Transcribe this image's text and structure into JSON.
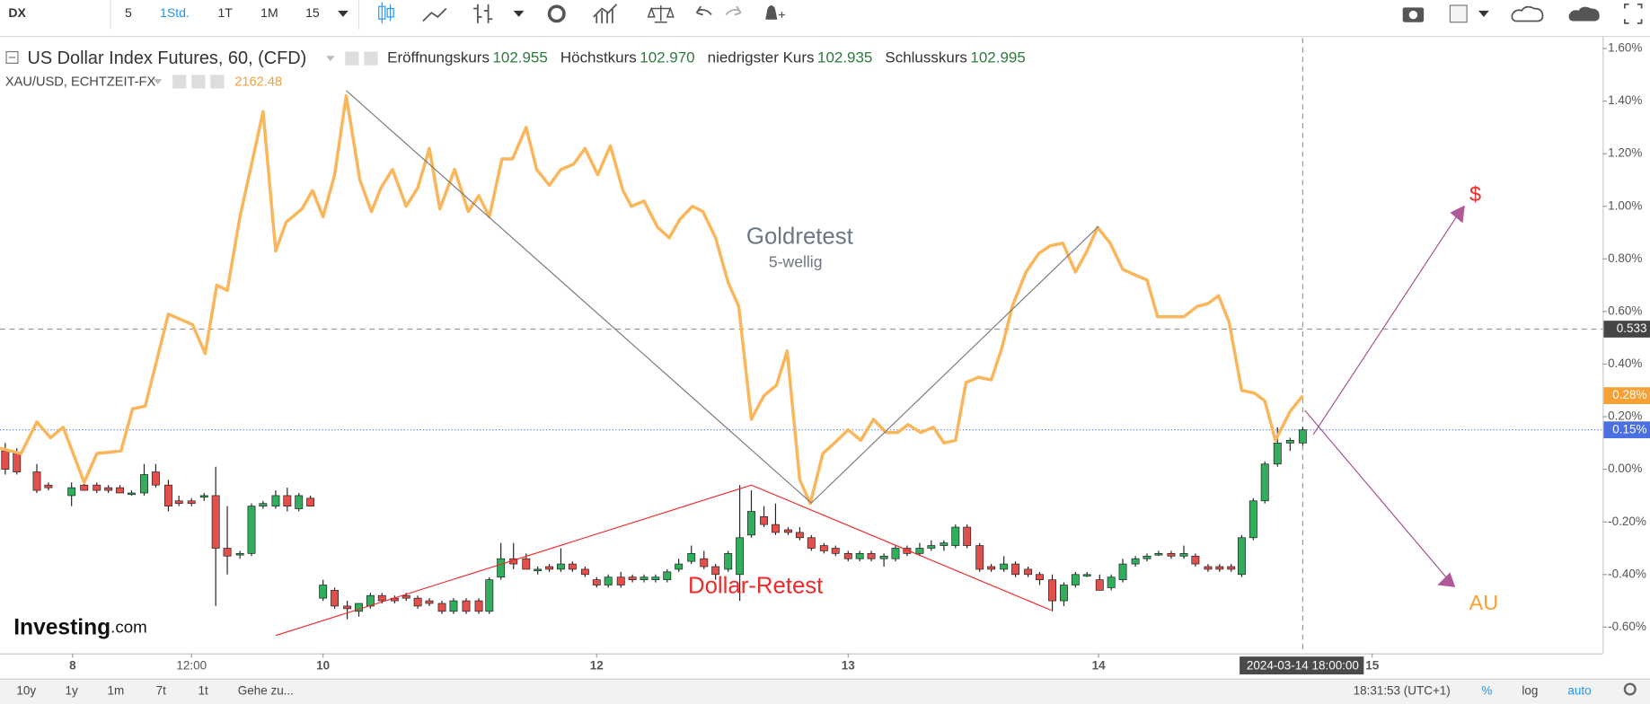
{
  "toolbar": {
    "symbol": "DX",
    "intervals": [
      "5",
      "1Std.",
      "1T",
      "1M",
      "15"
    ]
  },
  "legend": {
    "main": "US Dollar Index Futures, 60, (CFD)",
    "fields": [
      {
        "label": "Eröffnungskurs",
        "value": "102.955"
      },
      {
        "label": "Höchstkurs",
        "value": "102.970"
      },
      {
        "label": "niedrigster Kurs",
        "value": "102.935"
      },
      {
        "label": "Schlusskurs",
        "value": "102.995"
      }
    ],
    "overlay_value": "2162.48"
  },
  "annotations": [
    "Goldretest",
    "5-wellig",
    "Dollar-Retest",
    "$",
    "AU"
  ],
  "watermark": {
    "brand": "Investing",
    "suffix": ".com"
  },
  "bottom_bar": {
    "ranges": [
      "10y",
      "1y",
      "1m",
      "7t",
      "1t"
    ],
    "goto": "Gehe zu...",
    "clock": "18:31:53 (UTC+1)",
    "options": [
      "%",
      "log",
      "auto"
    ]
  },
  "chart_data": {
    "type": "candlestick",
    "name": "US Dollar Index Futures, 60, (CFD)",
    "up_color": "#2fae5c",
    "down_color": "#e3504c",
    "xlim": [
      0,
      152.3
    ],
    "xticks": [
      {
        "value": 6.9,
        "label": "8"
      },
      {
        "value": 18.2,
        "label": "12:00"
      },
      {
        "value": 30.7,
        "label": "10"
      },
      {
        "value": 56.7,
        "label": "12"
      },
      {
        "value": 80.6,
        "label": "13"
      },
      {
        "value": 104.4,
        "label": "14"
      },
      {
        "value": 130.4,
        "label": "15"
      }
    ],
    "ylim": [
      -0.7,
      1.64
    ],
    "yticks": [
      {
        "value": 1.6,
        "label": "1.60%"
      },
      {
        "value": 1.4,
        "label": "1.40%"
      },
      {
        "value": 1.2,
        "label": "1.20%"
      },
      {
        "value": 1.0,
        "label": "1.00%"
      },
      {
        "value": 0.8,
        "label": "0.80%"
      },
      {
        "value": 0.6,
        "label": "0.60%"
      },
      {
        "value": 0.4,
        "label": "0.40%"
      },
      {
        "value": 0.2,
        "label": "0.20%"
      },
      {
        "value": 0.0,
        "label": "0.00%"
      },
      {
        "value": -0.2,
        "label": "-0.20%"
      },
      {
        "value": -0.4,
        "label": "-0.40%"
      },
      {
        "value": -0.6,
        "label": "-0.60%"
      }
    ],
    "grid": false,
    "candles": [
      [
        0.5,
        0.07,
        0.1,
        -0.02,
        0.0
      ],
      [
        1.6,
        0.06,
        0.08,
        -0.02,
        -0.01
      ],
      [
        3.5,
        -0.01,
        0.02,
        -0.09,
        -0.08
      ],
      [
        4.6,
        -0.06,
        -0.05,
        -0.08,
        -0.07
      ],
      [
        6.8,
        -0.1,
        -0.05,
        -0.14,
        -0.07
      ],
      [
        8.0,
        -0.06,
        -0.05,
        -0.08,
        -0.08
      ],
      [
        9.2,
        -0.06,
        -0.05,
        -0.09,
        -0.08
      ],
      [
        10.3,
        -0.07,
        -0.06,
        -0.09,
        -0.08
      ],
      [
        11.4,
        -0.07,
        -0.06,
        -0.09,
        -0.09
      ],
      [
        12.5,
        -0.09,
        -0.08,
        -0.1,
        -0.09
      ],
      [
        13.7,
        -0.09,
        0.02,
        -0.1,
        -0.02
      ],
      [
        14.8,
        -0.01,
        0.02,
        -0.07,
        -0.06
      ],
      [
        16.0,
        -0.06,
        -0.04,
        -0.16,
        -0.14
      ],
      [
        17.0,
        -0.12,
        -0.1,
        -0.14,
        -0.13
      ],
      [
        18.2,
        -0.12,
        -0.11,
        -0.14,
        -0.13
      ],
      [
        19.4,
        -0.1,
        -0.09,
        -0.12,
        -0.1
      ],
      [
        20.5,
        -0.1,
        0.01,
        -0.52,
        -0.3
      ],
      [
        21.6,
        -0.3,
        -0.14,
        -0.4,
        -0.33
      ],
      [
        22.8,
        -0.32,
        -0.31,
        -0.34,
        -0.32
      ],
      [
        23.9,
        -0.32,
        -0.13,
        -0.33,
        -0.14
      ],
      [
        25.0,
        -0.14,
        -0.12,
        -0.15,
        -0.13
      ],
      [
        26.2,
        -0.14,
        -0.08,
        -0.15,
        -0.1
      ],
      [
        27.3,
        -0.1,
        -0.07,
        -0.16,
        -0.14
      ],
      [
        28.4,
        -0.15,
        -0.09,
        -0.16,
        -0.1
      ],
      [
        29.5,
        -0.11,
        -0.1,
        -0.14,
        -0.14
      ],
      [
        30.7,
        -0.49,
        -0.42,
        -0.5,
        -0.44
      ],
      [
        31.8,
        -0.46,
        -0.45,
        -0.53,
        -0.52
      ],
      [
        33.0,
        -0.52,
        -0.5,
        -0.57,
        -0.53
      ],
      [
        34.1,
        -0.54,
        -0.51,
        -0.56,
        -0.51
      ],
      [
        35.2,
        -0.52,
        -0.47,
        -0.53,
        -0.48
      ],
      [
        36.3,
        -0.48,
        -0.47,
        -0.51,
        -0.5
      ],
      [
        37.5,
        -0.49,
        -0.48,
        -0.51,
        -0.5
      ],
      [
        38.6,
        -0.48,
        -0.47,
        -0.5,
        -0.49
      ],
      [
        39.7,
        -0.49,
        -0.48,
        -0.53,
        -0.52
      ],
      [
        40.8,
        -0.5,
        -0.49,
        -0.52,
        -0.51
      ],
      [
        42.0,
        -0.51,
        -0.5,
        -0.55,
        -0.54
      ],
      [
        43.1,
        -0.54,
        -0.49,
        -0.55,
        -0.5
      ],
      [
        44.3,
        -0.5,
        -0.49,
        -0.55,
        -0.54
      ],
      [
        45.5,
        -0.5,
        -0.49,
        -0.55,
        -0.54
      ],
      [
        46.5,
        -0.54,
        -0.41,
        -0.55,
        -0.42
      ],
      [
        47.6,
        -0.41,
        -0.28,
        -0.42,
        -0.34
      ],
      [
        48.8,
        -0.34,
        -0.28,
        -0.38,
        -0.36
      ],
      [
        50.0,
        -0.34,
        -0.32,
        -0.38,
        -0.38
      ],
      [
        51.1,
        -0.38,
        -0.37,
        -0.4,
        -0.38
      ],
      [
        52.2,
        -0.37,
        -0.36,
        -0.39,
        -0.38
      ],
      [
        53.3,
        -0.38,
        -0.3,
        -0.39,
        -0.36
      ],
      [
        54.4,
        -0.36,
        -0.35,
        -0.39,
        -0.38
      ],
      [
        55.6,
        -0.38,
        -0.37,
        -0.41,
        -0.4
      ],
      [
        56.7,
        -0.42,
        -0.41,
        -0.45,
        -0.44
      ],
      [
        57.8,
        -0.44,
        -0.4,
        -0.45,
        -0.41
      ],
      [
        59.0,
        -0.41,
        -0.39,
        -0.45,
        -0.44
      ],
      [
        60.1,
        -0.41,
        -0.4,
        -0.43,
        -0.42
      ],
      [
        61.2,
        -0.42,
        -0.4,
        -0.43,
        -0.41
      ],
      [
        62.3,
        -0.42,
        -0.4,
        -0.43,
        -0.41
      ],
      [
        63.4,
        -0.42,
        -0.38,
        -0.43,
        -0.39
      ],
      [
        64.5,
        -0.38,
        -0.34,
        -0.39,
        -0.36
      ],
      [
        65.7,
        -0.35,
        -0.29,
        -0.36,
        -0.32
      ],
      [
        66.9,
        -0.34,
        -0.31,
        -0.38,
        -0.37
      ],
      [
        68.0,
        -0.37,
        -0.36,
        -0.42,
        -0.4
      ],
      [
        69.2,
        -0.38,
        -0.31,
        -0.39,
        -0.32
      ],
      [
        70.3,
        -0.4,
        -0.06,
        -0.5,
        -0.26
      ],
      [
        71.4,
        -0.25,
        -0.08,
        -0.26,
        -0.16
      ],
      [
        72.6,
        -0.18,
        -0.14,
        -0.22,
        -0.21
      ],
      [
        73.7,
        -0.21,
        -0.13,
        -0.25,
        -0.24
      ],
      [
        74.9,
        -0.23,
        -0.22,
        -0.25,
        -0.24
      ],
      [
        76.0,
        -0.24,
        -0.22,
        -0.27,
        -0.26
      ],
      [
        77.1,
        -0.26,
        -0.25,
        -0.31,
        -0.3
      ],
      [
        78.3,
        -0.29,
        -0.28,
        -0.32,
        -0.31
      ],
      [
        79.4,
        -0.3,
        -0.29,
        -0.33,
        -0.32
      ],
      [
        80.6,
        -0.32,
        -0.31,
        -0.35,
        -0.34
      ],
      [
        81.7,
        -0.34,
        -0.31,
        -0.35,
        -0.32
      ],
      [
        82.8,
        -0.32,
        -0.31,
        -0.35,
        -0.34
      ],
      [
        84.0,
        -0.34,
        -0.32,
        -0.37,
        -0.33
      ],
      [
        85.1,
        -0.34,
        -0.29,
        -0.35,
        -0.3
      ],
      [
        86.2,
        -0.3,
        -0.29,
        -0.33,
        -0.32
      ],
      [
        87.4,
        -0.32,
        -0.28,
        -0.33,
        -0.3
      ],
      [
        88.5,
        -0.3,
        -0.27,
        -0.31,
        -0.29
      ],
      [
        89.7,
        -0.29,
        -0.27,
        -0.31,
        -0.28
      ],
      [
        90.8,
        -0.29,
        -0.21,
        -0.3,
        -0.22
      ],
      [
        91.9,
        -0.22,
        -0.21,
        -0.3,
        -0.29
      ],
      [
        93.1,
        -0.29,
        -0.28,
        -0.39,
        -0.38
      ],
      [
        94.2,
        -0.37,
        -0.36,
        -0.39,
        -0.38
      ],
      [
        95.4,
        -0.38,
        -0.33,
        -0.39,
        -0.36
      ],
      [
        96.5,
        -0.36,
        -0.35,
        -0.41,
        -0.4
      ],
      [
        97.7,
        -0.38,
        -0.37,
        -0.41,
        -0.4
      ],
      [
        98.8,
        -0.4,
        -0.39,
        -0.44,
        -0.42
      ],
      [
        100.0,
        -0.42,
        -0.4,
        -0.54,
        -0.5
      ],
      [
        101.1,
        -0.5,
        -0.43,
        -0.52,
        -0.44
      ],
      [
        102.2,
        -0.44,
        -0.39,
        -0.45,
        -0.4
      ],
      [
        103.3,
        -0.4,
        -0.39,
        -0.41,
        -0.4
      ],
      [
        104.5,
        -0.42,
        -0.4,
        -0.46,
        -0.46
      ],
      [
        105.6,
        -0.45,
        -0.4,
        -0.46,
        -0.41
      ],
      [
        106.7,
        -0.42,
        -0.34,
        -0.43,
        -0.36
      ],
      [
        107.9,
        -0.36,
        -0.33,
        -0.37,
        -0.34
      ],
      [
        109.0,
        -0.34,
        -0.32,
        -0.35,
        -0.33
      ],
      [
        110.1,
        -0.32,
        -0.31,
        -0.33,
        -0.32
      ],
      [
        111.3,
        -0.32,
        -0.31,
        -0.34,
        -0.33
      ],
      [
        112.5,
        -0.33,
        -0.29,
        -0.34,
        -0.32
      ],
      [
        113.6,
        -0.33,
        -0.32,
        -0.37,
        -0.36
      ],
      [
        114.8,
        -0.37,
        -0.36,
        -0.39,
        -0.38
      ],
      [
        115.9,
        -0.37,
        -0.36,
        -0.39,
        -0.38
      ],
      [
        117.0,
        -0.37,
        -0.36,
        -0.39,
        -0.38
      ],
      [
        118.0,
        -0.4,
        -0.25,
        -0.41,
        -0.26
      ],
      [
        119.1,
        -0.26,
        -0.11,
        -0.27,
        -0.12
      ],
      [
        120.2,
        -0.12,
        0.03,
        -0.13,
        0.02
      ],
      [
        121.4,
        0.02,
        0.16,
        0.01,
        0.1
      ],
      [
        122.6,
        0.1,
        0.12,
        0.07,
        0.11
      ],
      [
        123.8,
        0.1,
        0.16,
        0.09,
        0.15
      ]
    ],
    "series": [
      {
        "name": "XAU/USD, ECHTZEIT-FX",
        "color": "#f9b65b",
        "x": [
          0,
          2.0,
          3.5,
          4.8,
          6.0,
          8.0,
          9.2,
          11.5,
          12.6,
          13.8,
          16.0,
          18.3,
          19.5,
          20.6,
          21.6,
          22.8,
          23.8,
          25.0,
          26.2,
          27.2,
          28.7,
          29.7,
          30.7,
          31.8,
          32.9,
          34.2,
          35.3,
          36.2,
          37.3,
          38.6,
          39.7,
          40.8,
          41.8,
          43.2,
          44.5,
          45.5,
          46.5,
          47.7,
          48.7,
          50.0,
          51.0,
          52.2,
          53.3,
          54.5,
          55.6,
          56.8,
          58.0,
          59.2,
          60.0,
          61.2,
          62.5,
          63.6,
          64.6,
          65.8,
          66.8,
          68.0,
          69.2,
          70.2,
          71.4,
          72.6,
          73.8,
          74.8,
          76.0,
          77.0,
          78.2,
          79.3,
          80.6,
          81.8,
          83.0,
          84.2,
          85.3,
          86.3,
          87.5,
          88.7,
          89.7,
          90.8,
          91.8,
          93.0,
          94.2,
          95.2,
          96.2,
          97.5,
          98.7,
          99.8,
          101.0,
          102.2,
          103.3,
          104.3,
          105.5,
          106.7,
          107.8,
          109.0,
          110.0,
          111.2,
          112.5,
          113.8,
          114.8,
          115.8,
          116.8,
          118.0,
          119.2,
          120.2,
          121.2,
          122.6,
          123.8
        ],
        "values": [
          0.08,
          0.06,
          0.18,
          0.12,
          0.16,
          -0.05,
          0.06,
          0.07,
          0.23,
          0.24,
          0.59,
          0.55,
          0.44,
          0.7,
          0.68,
          0.96,
          1.14,
          1.36,
          0.83,
          0.94,
          0.99,
          1.06,
          0.96,
          1.12,
          1.42,
          1.1,
          0.98,
          1.07,
          1.14,
          1.0,
          1.07,
          1.22,
          0.99,
          1.14,
          0.98,
          1.04,
          0.96,
          1.18,
          1.18,
          1.3,
          1.14,
          1.08,
          1.14,
          1.16,
          1.22,
          1.12,
          1.23,
          1.06,
          1.0,
          1.02,
          0.92,
          0.88,
          0.95,
          1.0,
          0.98,
          0.88,
          0.71,
          0.62,
          0.19,
          0.28,
          0.32,
          0.45,
          -0.04,
          -0.13,
          0.06,
          0.1,
          0.15,
          0.11,
          0.19,
          0.14,
          0.14,
          0.17,
          0.14,
          0.16,
          0.1,
          0.11,
          0.33,
          0.35,
          0.34,
          0.46,
          0.62,
          0.75,
          0.82,
          0.85,
          0.86,
          0.75,
          0.83,
          0.92,
          0.86,
          0.76,
          0.74,
          0.72,
          0.58,
          0.58,
          0.58,
          0.62,
          0.63,
          0.66,
          0.56,
          0.3,
          0.29,
          0.26,
          0.11,
          0.22,
          0.28
        ]
      }
    ],
    "price_labels": {
      "values": [
        0.533,
        0.28,
        0.15
      ],
      "value_labels": [
        "0.533",
        "0.28%",
        "0.15%"
      ],
      "colors": [
        "#454545",
        "#f7a033",
        "#4a6fe3"
      ],
      "line_styles": [
        "dashed",
        null,
        "dotted"
      ]
    },
    "crosshair": {
      "x": 123.8,
      "label": "2024-03-14 18:00:00"
    }
  }
}
